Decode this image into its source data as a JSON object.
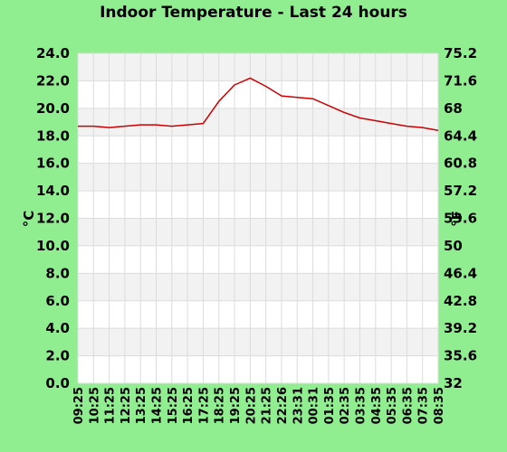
{
  "chart_data": {
    "type": "line",
    "title": "Indoor Temperature - Last 24 hours",
    "ylabel_left": "°C",
    "ylabel_right": "°F",
    "ylim": [
      0,
      24
    ],
    "yticks_left": [
      "0.0",
      "2.0",
      "4.0",
      "6.0",
      "8.0",
      "10.0",
      "12.0",
      "14.0",
      "16.0",
      "18.0",
      "20.0",
      "22.0",
      "24.0"
    ],
    "yticks_right": [
      "32",
      "35.6",
      "39.2",
      "42.8",
      "46.4",
      "50",
      "53.6",
      "57.2",
      "60.8",
      "64.4",
      "68",
      "71.6",
      "75.2"
    ],
    "x_ticks": [
      "09:25",
      "10:25",
      "11:25",
      "12:25",
      "13:25",
      "14:25",
      "15:25",
      "16:25",
      "17:25",
      "18:25",
      "19:25",
      "20:25",
      "21:25",
      "22:26",
      "23:31",
      "00:31",
      "01:35",
      "02:35",
      "03:35",
      "04:35",
      "05:35",
      "06:35",
      "07:35",
      "08:35"
    ],
    "grid": true,
    "colors": {
      "background": "#90ee90",
      "band_light": "#f2f2f2",
      "band_white": "#ffffff",
      "gridline": "#dcdcdc",
      "line": "#cc0000"
    },
    "series": [
      {
        "values": [
          18.7,
          18.7,
          18.6,
          18.7,
          18.8,
          18.8,
          18.7,
          18.8,
          18.9,
          20.5,
          21.7,
          22.2,
          21.6,
          20.9,
          20.8,
          20.7,
          20.2,
          19.7,
          19.3,
          19.1,
          18.9,
          18.7,
          18.6,
          18.4
        ]
      }
    ]
  }
}
